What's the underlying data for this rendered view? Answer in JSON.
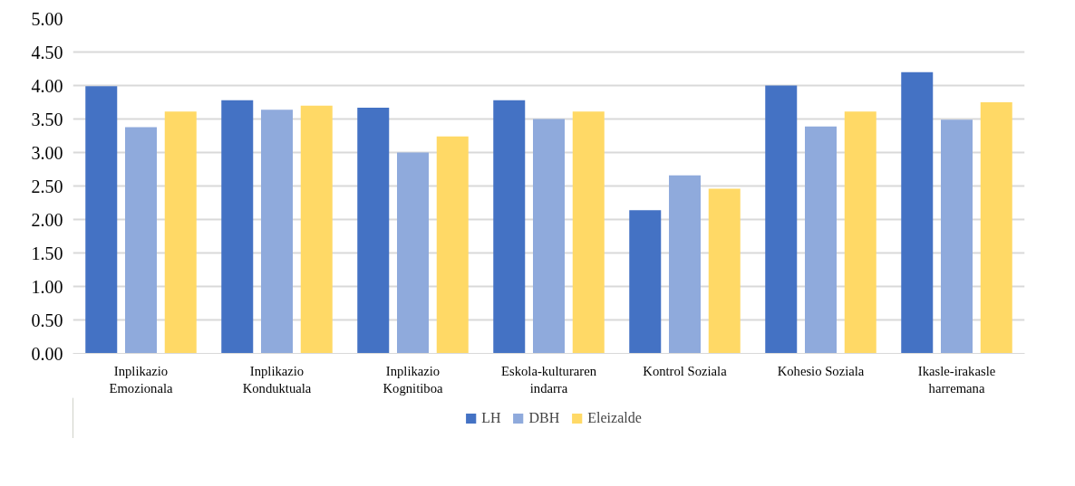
{
  "chart_data": {
    "type": "bar",
    "categories": [
      "Inplikazio\nEmozionala",
      "Inplikazio\nKonduktuala",
      "Inplikazio\nKognitiboa",
      "Eskola-kulturaren\nindarra",
      "Kontrol Soziala",
      "Kohesio Soziala",
      "Ikasle-irakasle\nharremana"
    ],
    "series": [
      {
        "name": "LH",
        "color": "#4472c4",
        "values": [
          3.99,
          3.78,
          3.67,
          3.78,
          2.14,
          4.0,
          4.2
        ]
      },
      {
        "name": "DBH",
        "color": "#8faadc",
        "values": [
          3.38,
          3.64,
          3.0,
          3.5,
          2.66,
          3.39,
          3.49
        ]
      },
      {
        "name": "Eleizalde",
        "color": "#ffd966",
        "values": [
          3.61,
          3.7,
          3.24,
          3.61,
          2.46,
          3.61,
          3.75
        ]
      }
    ],
    "ylim": [
      0,
      5
    ],
    "yticks": [
      {
        "value": 0,
        "label": "0.00"
      },
      {
        "value": 0.5,
        "label": "0.50"
      },
      {
        "value": 1,
        "label": "1.00"
      },
      {
        "value": 1.5,
        "label": "1.50"
      },
      {
        "value": 2,
        "label": "2.00"
      },
      {
        "value": 2.5,
        "label": "2.50"
      },
      {
        "value": 3,
        "label": "3.00"
      },
      {
        "value": 3.5,
        "label": "3.50"
      },
      {
        "value": 4,
        "label": "4.00"
      },
      {
        "value": 4.5,
        "label": "4.50"
      },
      {
        "value": 5,
        "label": "5.00"
      }
    ],
    "grid": "y",
    "legend": "bottom"
  }
}
